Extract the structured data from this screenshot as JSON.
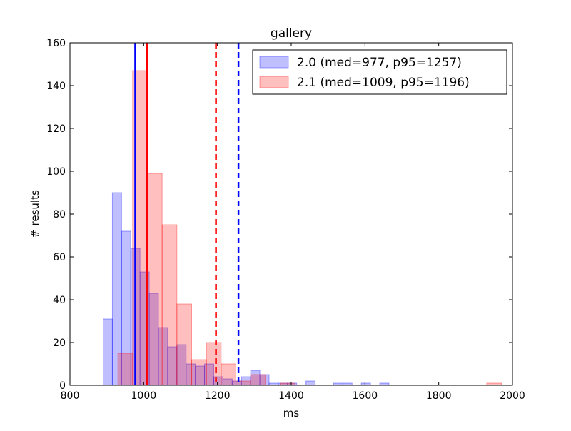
{
  "chart_data": {
    "type": "bar",
    "title": "gallery",
    "xlabel": "ms",
    "ylabel": "# results",
    "xlim": [
      800,
      2000
    ],
    "ylim": [
      0,
      160
    ],
    "xticks": [
      800,
      1000,
      1200,
      1400,
      1600,
      1800,
      2000
    ],
    "yticks": [
      0,
      20,
      40,
      60,
      80,
      100,
      120,
      140,
      160
    ],
    "grid": false,
    "legend_position": "top-right",
    "series": [
      {
        "name": "2.0 (med=977, p95=1257)",
        "color": "#0000ff",
        "bins": [
          {
            "x0": 890,
            "x1": 915,
            "value": 31
          },
          {
            "x0": 915,
            "x1": 940,
            "value": 90
          },
          {
            "x0": 940,
            "x1": 965,
            "value": 72
          },
          {
            "x0": 965,
            "x1": 990,
            "value": 64
          },
          {
            "x0": 990,
            "x1": 1015,
            "value": 53
          },
          {
            "x0": 1015,
            "x1": 1040,
            "value": 43
          },
          {
            "x0": 1040,
            "x1": 1065,
            "value": 27
          },
          {
            "x0": 1065,
            "x1": 1090,
            "value": 18
          },
          {
            "x0": 1090,
            "x1": 1115,
            "value": 19
          },
          {
            "x0": 1115,
            "x1": 1140,
            "value": 10
          },
          {
            "x0": 1140,
            "x1": 1165,
            "value": 9
          },
          {
            "x0": 1165,
            "x1": 1190,
            "value": 10
          },
          {
            "x0": 1190,
            "x1": 1215,
            "value": 4
          },
          {
            "x0": 1215,
            "x1": 1240,
            "value": 3
          },
          {
            "x0": 1240,
            "x1": 1265,
            "value": 2
          },
          {
            "x0": 1265,
            "x1": 1290,
            "value": 4
          },
          {
            "x0": 1290,
            "x1": 1315,
            "value": 7
          },
          {
            "x0": 1315,
            "x1": 1340,
            "value": 5
          },
          {
            "x0": 1340,
            "x1": 1365,
            "value": 1
          },
          {
            "x0": 1365,
            "x1": 1390,
            "value": 1
          },
          {
            "x0": 1390,
            "x1": 1415,
            "value": 1
          },
          {
            "x0": 1440,
            "x1": 1465,
            "value": 2
          },
          {
            "x0": 1515,
            "x1": 1540,
            "value": 1
          },
          {
            "x0": 1540,
            "x1": 1565,
            "value": 1
          },
          {
            "x0": 1590,
            "x1": 1615,
            "value": 1
          },
          {
            "x0": 1640,
            "x1": 1665,
            "value": 1
          }
        ],
        "median": 977,
        "p95": 1257
      },
      {
        "name": "2.1 (med=1009, p95=1196)",
        "color": "#ff0000",
        "bins": [
          {
            "x0": 930,
            "x1": 970,
            "value": 15
          },
          {
            "x0": 970,
            "x1": 1010,
            "value": 147
          },
          {
            "x0": 1010,
            "x1": 1050,
            "value": 99
          },
          {
            "x0": 1050,
            "x1": 1090,
            "value": 75
          },
          {
            "x0": 1090,
            "x1": 1130,
            "value": 38
          },
          {
            "x0": 1130,
            "x1": 1170,
            "value": 12
          },
          {
            "x0": 1170,
            "x1": 1210,
            "value": 20
          },
          {
            "x0": 1210,
            "x1": 1250,
            "value": 10
          },
          {
            "x0": 1250,
            "x1": 1290,
            "value": 2
          },
          {
            "x0": 1290,
            "x1": 1330,
            "value": 5
          },
          {
            "x0": 1370,
            "x1": 1410,
            "value": 1
          },
          {
            "x0": 1930,
            "x1": 1970,
            "value": 1
          }
        ],
        "median": 1009,
        "p95": 1196
      }
    ]
  }
}
